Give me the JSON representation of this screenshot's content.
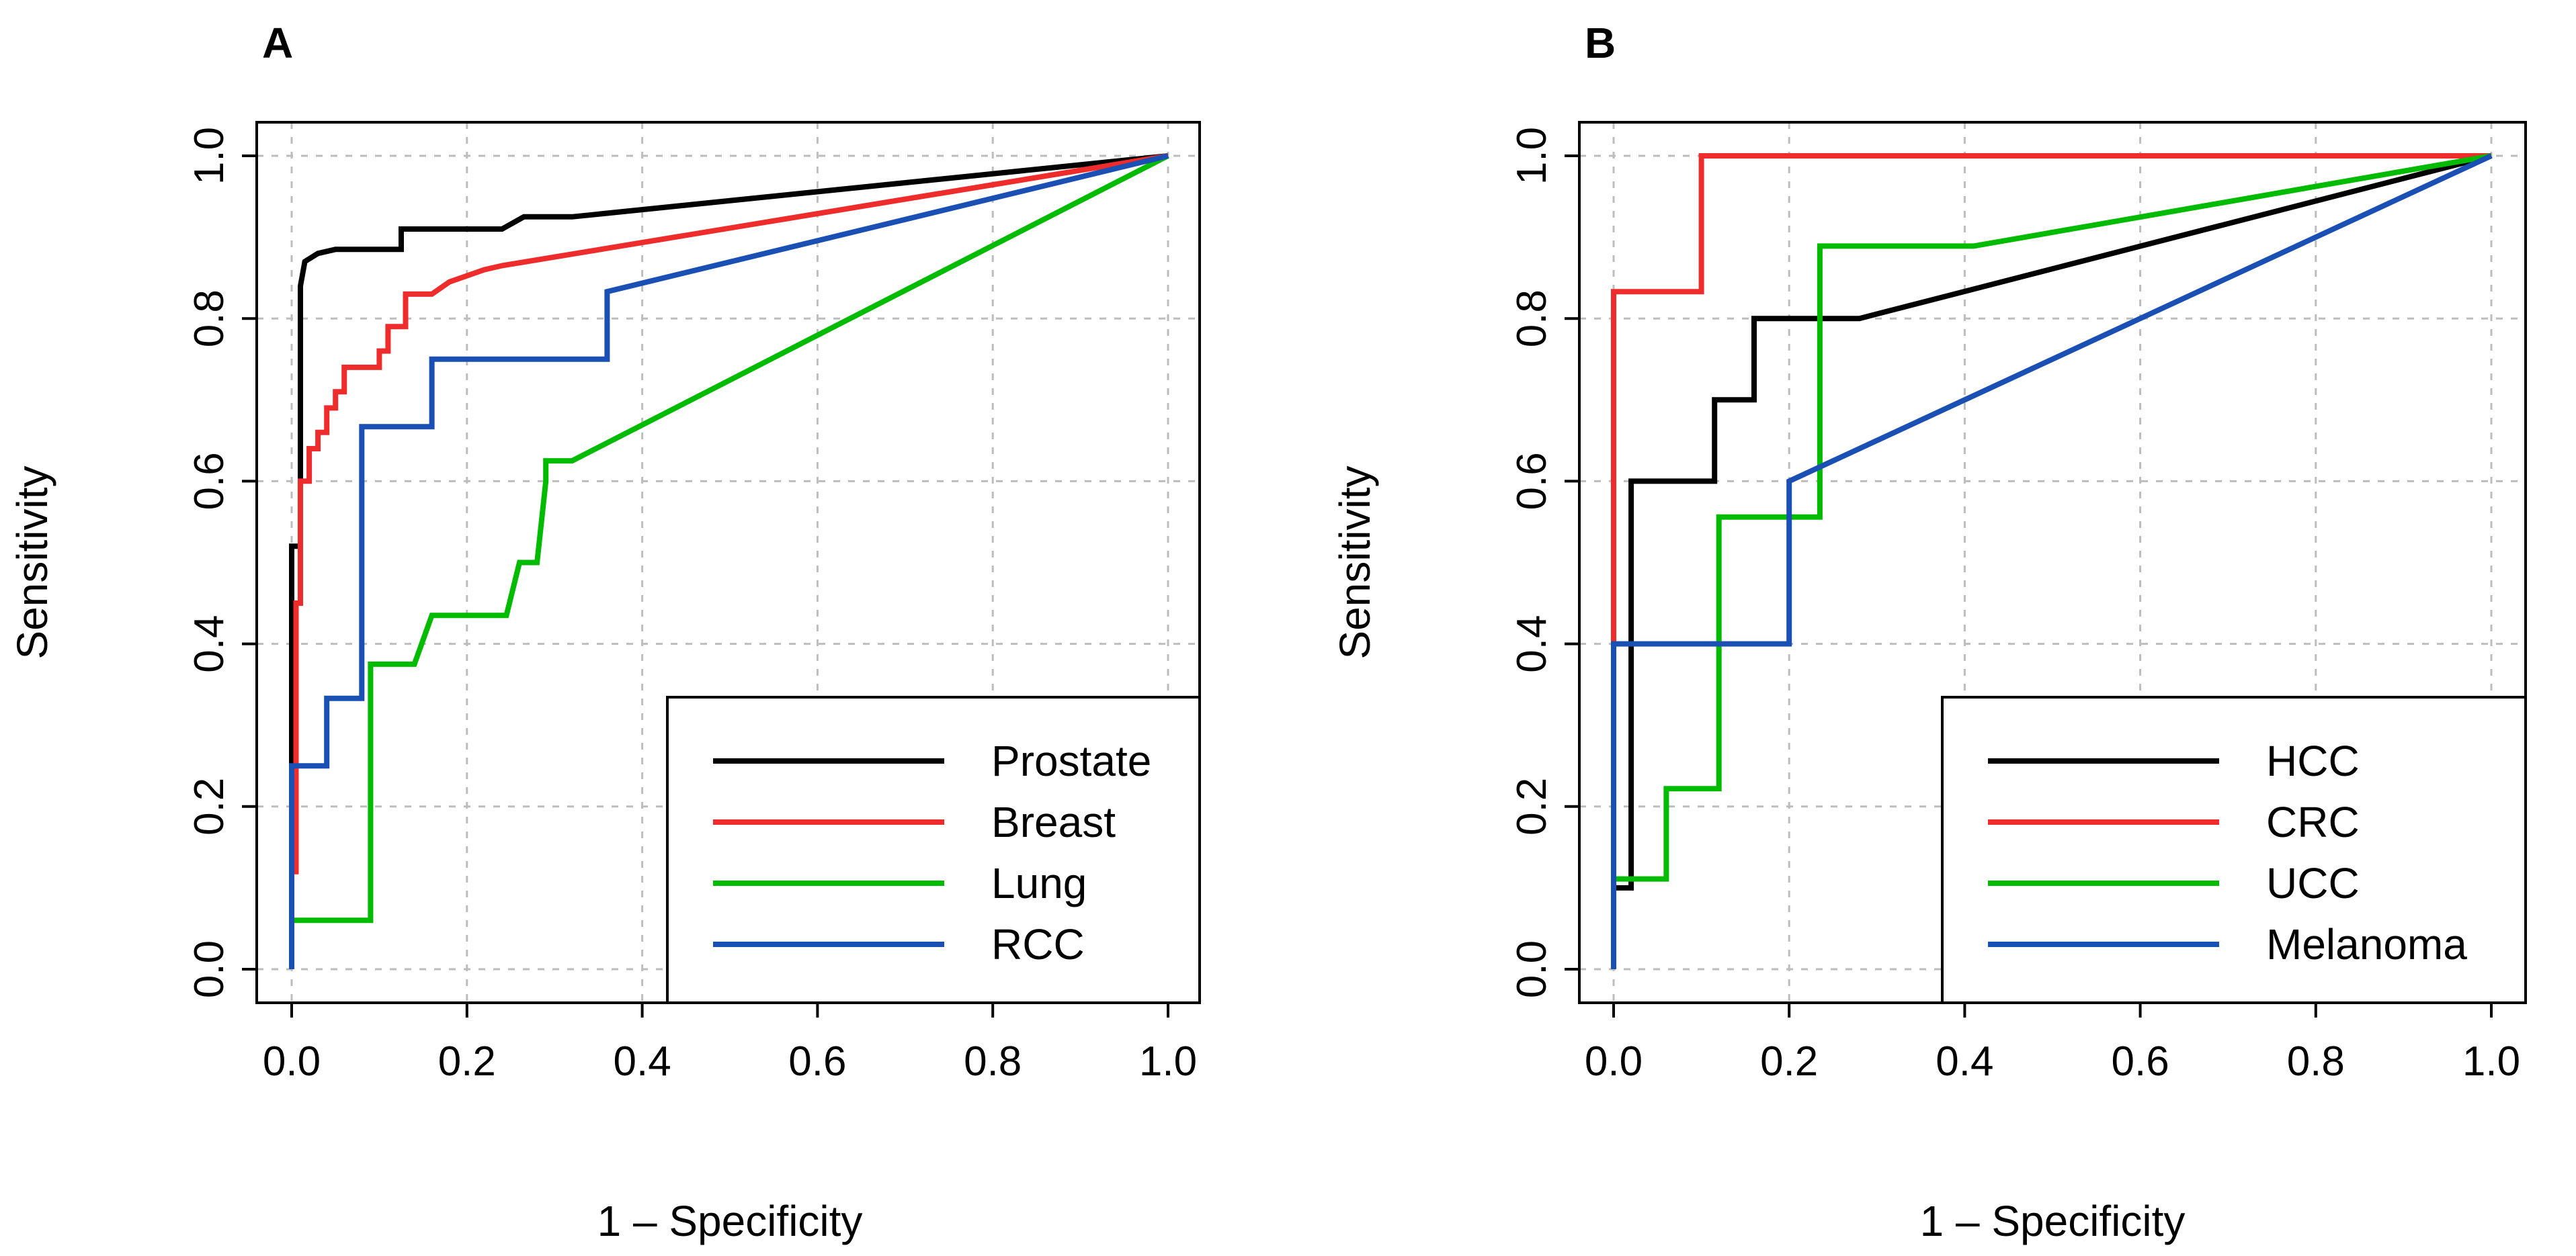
{
  "chart_data": [
    {
      "type": "line",
      "panel": "A",
      "title": "",
      "xlabel": "1 – Specificity",
      "ylabel": "Sensitivity",
      "xlim": [
        0,
        1
      ],
      "ylim": [
        0,
        1
      ],
      "xticks": [
        "0.0",
        "0.2",
        "0.4",
        "0.6",
        "0.8",
        "1.0"
      ],
      "yticks": [
        "0.0",
        "0.2",
        "0.4",
        "0.6",
        "0.8",
        "1.0"
      ],
      "grid": true,
      "legend_position": "bottom-right",
      "series": [
        {
          "name": "Prostate",
          "color": "#000000",
          "x": [
            0,
            0,
            0.01,
            0.01,
            0.015,
            0.015,
            0.03,
            0.05,
            0.125,
            0.125,
            0.24,
            0.265,
            0.32,
            1.0
          ],
          "y": [
            0,
            0.52,
            0.52,
            0.84,
            0.87,
            0.87,
            0.88,
            0.885,
            0.885,
            0.91,
            0.91,
            0.925,
            0.925,
            1.0
          ]
        },
        {
          "name": "Breast",
          "color": "#ee2c2c",
          "x": [
            0,
            0,
            0.005,
            0.005,
            0.01,
            0.01,
            0.02,
            0.02,
            0.03,
            0.03,
            0.04,
            0.04,
            0.05,
            0.05,
            0.06,
            0.06,
            0.1,
            0.1,
            0.11,
            0.11,
            0.13,
            0.13,
            0.16,
            0.18,
            0.18,
            0.22,
            0.22,
            0.24,
            0.24,
            1.0
          ],
          "y": [
            0,
            0.12,
            0.12,
            0.45,
            0.45,
            0.6,
            0.6,
            0.64,
            0.64,
            0.66,
            0.66,
            0.69,
            0.69,
            0.71,
            0.71,
            0.74,
            0.74,
            0.76,
            0.76,
            0.79,
            0.79,
            0.83,
            0.83,
            0.845,
            0.845,
            0.86,
            0.86,
            0.865,
            0.865,
            1.0
          ]
        },
        {
          "name": "Lung",
          "color": "#00bb00",
          "x": [
            0,
            0,
            0.09,
            0.09,
            0.14,
            0.16,
            0.16,
            0.245,
            0.26,
            0.26,
            0.28,
            0.29,
            0.29,
            0.32,
            1.0
          ],
          "y": [
            0,
            0.06,
            0.06,
            0.375,
            0.375,
            0.435,
            0.435,
            0.435,
            0.5,
            0.5,
            0.5,
            0.6,
            0.625,
            0.625,
            1.0
          ]
        },
        {
          "name": "RCC",
          "color": "#1a4fb3",
          "x": [
            0,
            0,
            0.04,
            0.04,
            0.08,
            0.08,
            0.16,
            0.16,
            0.36,
            0.36,
            1.0
          ],
          "y": [
            0,
            0.25,
            0.25,
            0.333,
            0.333,
            0.667,
            0.667,
            0.75,
            0.75,
            0.833,
            1.0
          ]
        }
      ]
    },
    {
      "type": "line",
      "panel": "B",
      "title": "",
      "xlabel": "1 – Specificity",
      "ylabel": "Sensitivity",
      "xlim": [
        0,
        1
      ],
      "ylim": [
        0,
        1
      ],
      "xticks": [
        "0.0",
        "0.2",
        "0.4",
        "0.6",
        "0.8",
        "1.0"
      ],
      "yticks": [
        "0.0",
        "0.2",
        "0.4",
        "0.6",
        "0.8",
        "1.0"
      ],
      "grid": true,
      "legend_position": "bottom-right",
      "series": [
        {
          "name": "HCC",
          "color": "#000000",
          "x": [
            0,
            0,
            0.02,
            0.02,
            0.115,
            0.115,
            0.16,
            0.16,
            0.28,
            1.0
          ],
          "y": [
            0,
            0.1,
            0.1,
            0.6,
            0.6,
            0.7,
            0.7,
            0.8,
            0.8,
            1.0
          ]
        },
        {
          "name": "CRC",
          "color": "#ee2c2c",
          "x": [
            0,
            0,
            0.1,
            0.1,
            1.0
          ],
          "y": [
            0,
            0.833,
            0.833,
            1.0,
            1.0
          ]
        },
        {
          "name": "UCC",
          "color": "#00bb00",
          "x": [
            0,
            0,
            0.06,
            0.06,
            0.12,
            0.12,
            0.235,
            0.235,
            0.41,
            1.0
          ],
          "y": [
            0,
            0.111,
            0.111,
            0.222,
            0.222,
            0.556,
            0.556,
            0.889,
            0.889,
            1.0
          ]
        },
        {
          "name": "Melanoma",
          "color": "#1a4fb3",
          "x": [
            0,
            0,
            0.2,
            0.2,
            1.0
          ],
          "y": [
            0,
            0.4,
            0.4,
            0.6,
            1.0
          ]
        }
      ]
    }
  ]
}
